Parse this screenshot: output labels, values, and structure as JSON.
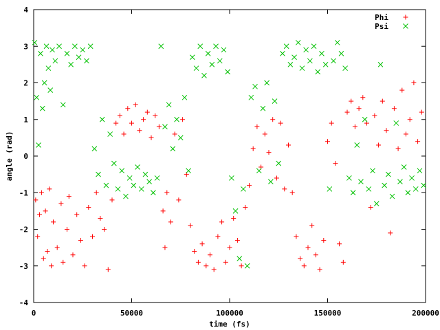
{
  "chart_data": {
    "type": "scatter",
    "xlabel": "time (fs)",
    "ylabel": "angle (rad)",
    "xlim": [
      0,
      200000
    ],
    "ylim": [
      -4,
      4
    ],
    "xticks": [
      0,
      50000,
      100000,
      150000,
      200000
    ],
    "yticks": [
      -4,
      -3,
      -2,
      -1,
      0,
      1,
      2,
      3,
      4
    ],
    "grid": false,
    "legend": "top-right",
    "series": [
      {
        "name": "Phi",
        "marker": "plus",
        "color": "#ff0000",
        "points": [
          [
            1000,
            -1.2
          ],
          [
            2000,
            -2.2
          ],
          [
            3000,
            -1.6
          ],
          [
            4000,
            -1.0
          ],
          [
            5000,
            -2.8
          ],
          [
            6000,
            -1.5
          ],
          [
            7000,
            -2.6
          ],
          [
            8000,
            -0.9
          ],
          [
            9000,
            -3.0
          ],
          [
            10000,
            -1.8
          ],
          [
            12000,
            -2.5
          ],
          [
            14000,
            -1.3
          ],
          [
            15000,
            -2.9
          ],
          [
            17000,
            -2.0
          ],
          [
            18000,
            -1.1
          ],
          [
            20000,
            -2.7
          ],
          [
            22000,
            -1.6
          ],
          [
            24000,
            -2.3
          ],
          [
            26000,
            -3.0
          ],
          [
            28000,
            -1.4
          ],
          [
            30000,
            -2.2
          ],
          [
            32000,
            -1.0
          ],
          [
            34000,
            -1.7
          ],
          [
            36000,
            -2.0
          ],
          [
            38000,
            -3.1
          ],
          [
            40000,
            -1.2
          ],
          [
            42000,
            0.9
          ],
          [
            44000,
            1.1
          ],
          [
            46000,
            0.6
          ],
          [
            48000,
            1.3
          ],
          [
            50000,
            0.9
          ],
          [
            52000,
            1.4
          ],
          [
            54000,
            0.7
          ],
          [
            56000,
            1.0
          ],
          [
            58000,
            1.2
          ],
          [
            60000,
            0.5
          ],
          [
            62000,
            1.1
          ],
          [
            64000,
            0.8
          ],
          [
            66000,
            -1.5
          ],
          [
            67000,
            -2.5
          ],
          [
            68000,
            -1.0
          ],
          [
            70000,
            -1.8
          ],
          [
            72000,
            0.6
          ],
          [
            74000,
            -1.2
          ],
          [
            76000,
            1.0
          ],
          [
            78000,
            -0.5
          ],
          [
            80000,
            -1.9
          ],
          [
            82000,
            -2.6
          ],
          [
            84000,
            -2.9
          ],
          [
            86000,
            -2.4
          ],
          [
            88000,
            -3.0
          ],
          [
            90000,
            -2.7
          ],
          [
            92000,
            -3.1
          ],
          [
            94000,
            -2.2
          ],
          [
            96000,
            -1.8
          ],
          [
            98000,
            -2.9
          ],
          [
            100000,
            -2.5
          ],
          [
            102000,
            -1.7
          ],
          [
            104000,
            -2.3
          ],
          [
            106000,
            -3.0
          ],
          [
            108000,
            -1.4
          ],
          [
            110000,
            -0.8
          ],
          [
            112000,
            0.2
          ],
          [
            114000,
            0.8
          ],
          [
            116000,
            -0.3
          ],
          [
            118000,
            0.6
          ],
          [
            120000,
            0.1
          ],
          [
            122000,
            1.0
          ],
          [
            124000,
            -0.6
          ],
          [
            126000,
            0.9
          ],
          [
            128000,
            -0.9
          ],
          [
            130000,
            0.3
          ],
          [
            132000,
            -1.0
          ],
          [
            134000,
            -2.2
          ],
          [
            136000,
            -2.8
          ],
          [
            138000,
            -3.0
          ],
          [
            140000,
            -2.5
          ],
          [
            142000,
            -1.9
          ],
          [
            144000,
            -2.7
          ],
          [
            146000,
            -3.1
          ],
          [
            148000,
            -2.3
          ],
          [
            150000,
            0.4
          ],
          [
            152000,
            0.9
          ],
          [
            154000,
            -0.2
          ],
          [
            156000,
            -2.4
          ],
          [
            158000,
            -2.9
          ],
          [
            160000,
            1.2
          ],
          [
            162000,
            1.5
          ],
          [
            164000,
            0.8
          ],
          [
            166000,
            1.3
          ],
          [
            168000,
            1.6
          ],
          [
            170000,
            0.9
          ],
          [
            172000,
            -1.4
          ],
          [
            174000,
            1.1
          ],
          [
            176000,
            0.3
          ],
          [
            178000,
            1.5
          ],
          [
            180000,
            0.7
          ],
          [
            182000,
            -2.1
          ],
          [
            184000,
            1.3
          ],
          [
            186000,
            0.2
          ],
          [
            188000,
            1.8
          ],
          [
            190000,
            0.6
          ],
          [
            192000,
            1.0
          ],
          [
            194000,
            2.0
          ],
          [
            196000,
            0.4
          ],
          [
            198000,
            1.2
          ]
        ]
      },
      {
        "name": "Psi",
        "marker": "cross",
        "color": "#00c000",
        "points": [
          [
            500,
            3.1
          ],
          [
            1500,
            1.6
          ],
          [
            2500,
            0.3
          ],
          [
            3500,
            2.8
          ],
          [
            4500,
            1.3
          ],
          [
            5500,
            2.0
          ],
          [
            6500,
            3.0
          ],
          [
            7500,
            2.4
          ],
          [
            8500,
            1.8
          ],
          [
            9500,
            2.9
          ],
          [
            11000,
            2.6
          ],
          [
            13000,
            3.0
          ],
          [
            15000,
            1.4
          ],
          [
            17000,
            2.8
          ],
          [
            19000,
            2.5
          ],
          [
            21000,
            3.0
          ],
          [
            23000,
            2.7
          ],
          [
            25000,
            2.9
          ],
          [
            27000,
            2.6
          ],
          [
            29000,
            3.0
          ],
          [
            31000,
            0.2
          ],
          [
            33000,
            -0.5
          ],
          [
            35000,
            1.0
          ],
          [
            37000,
            -0.8
          ],
          [
            39000,
            0.6
          ],
          [
            41000,
            -0.2
          ],
          [
            43000,
            -0.9
          ],
          [
            45000,
            -0.4
          ],
          [
            47000,
            -1.1
          ],
          [
            49000,
            -0.6
          ],
          [
            51000,
            -0.8
          ],
          [
            53000,
            -0.3
          ],
          [
            55000,
            -0.9
          ],
          [
            57000,
            -0.5
          ],
          [
            59000,
            -0.7
          ],
          [
            61000,
            -1.0
          ],
          [
            63000,
            -0.6
          ],
          [
            65000,
            3.0
          ],
          [
            67000,
            0.8
          ],
          [
            69000,
            1.4
          ],
          [
            71000,
            0.2
          ],
          [
            73000,
            1.0
          ],
          [
            75000,
            0.5
          ],
          [
            77000,
            1.6
          ],
          [
            79000,
            -0.4
          ],
          [
            81000,
            2.7
          ],
          [
            83000,
            2.4
          ],
          [
            85000,
            3.0
          ],
          [
            87000,
            2.2
          ],
          [
            89000,
            2.8
          ],
          [
            91000,
            2.5
          ],
          [
            93000,
            3.0
          ],
          [
            95000,
            2.6
          ],
          [
            97000,
            2.9
          ],
          [
            99000,
            2.3
          ],
          [
            101000,
            -0.6
          ],
          [
            103000,
            -1.5
          ],
          [
            105000,
            -2.8
          ],
          [
            107000,
            -0.9
          ],
          [
            109000,
            -3.0
          ],
          [
            111000,
            1.6
          ],
          [
            113000,
            1.9
          ],
          [
            115000,
            -0.4
          ],
          [
            117000,
            1.3
          ],
          [
            119000,
            2.0
          ],
          [
            121000,
            -0.7
          ],
          [
            123000,
            1.5
          ],
          [
            125000,
            -0.2
          ],
          [
            127000,
            2.8
          ],
          [
            129000,
            3.0
          ],
          [
            131000,
            2.5
          ],
          [
            133000,
            2.7
          ],
          [
            135000,
            3.1
          ],
          [
            137000,
            2.4
          ],
          [
            139000,
            2.9
          ],
          [
            141000,
            2.6
          ],
          [
            143000,
            3.0
          ],
          [
            145000,
            2.3
          ],
          [
            147000,
            2.8
          ],
          [
            149000,
            2.5
          ],
          [
            151000,
            -0.9
          ],
          [
            153000,
            2.6
          ],
          [
            155000,
            3.1
          ],
          [
            157000,
            2.8
          ],
          [
            159000,
            2.4
          ],
          [
            161000,
            -0.6
          ],
          [
            163000,
            -1.0
          ],
          [
            165000,
            0.3
          ],
          [
            167000,
            -0.7
          ],
          [
            169000,
            1.0
          ],
          [
            171000,
            -0.9
          ],
          [
            173000,
            -0.4
          ],
          [
            175000,
            -1.3
          ],
          [
            177000,
            2.5
          ],
          [
            179000,
            -0.8
          ],
          [
            181000,
            -0.5
          ],
          [
            183000,
            -1.1
          ],
          [
            185000,
            0.9
          ],
          [
            187000,
            -0.7
          ],
          [
            189000,
            -0.3
          ],
          [
            191000,
            -1.0
          ],
          [
            193000,
            -0.6
          ],
          [
            195000,
            -0.9
          ],
          [
            197000,
            -0.4
          ],
          [
            199000,
            -0.8
          ]
        ]
      }
    ]
  }
}
